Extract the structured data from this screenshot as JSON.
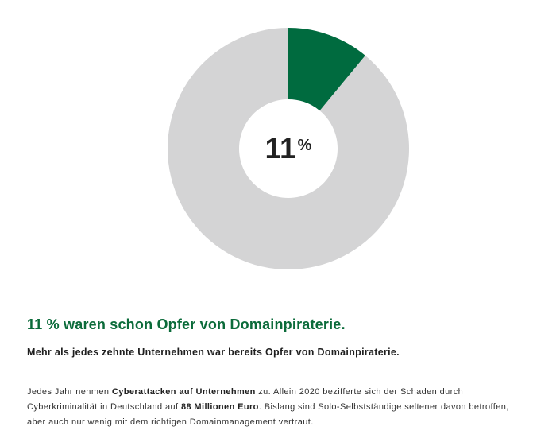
{
  "chart_data": {
    "type": "pie",
    "variant": "donut",
    "center_label": "11",
    "center_unit": "%",
    "slices": [
      {
        "value": 11,
        "color": "#006b3f"
      },
      {
        "value": 89,
        "color": "#d4d4d5"
      }
    ]
  },
  "text": {
    "headline": "11 % waren schon Opfer von Domainpiraterie.",
    "subhead": "Mehr als jedes zehnte Unternehmen war bereits Opfer von Domainpiraterie.",
    "body": {
      "p1": "Jedes Jahr nehmen ",
      "b1": "Cyberattacken auf Unternehmen",
      "p2": " zu. Allein 2020 bezifferte sich der Schaden durch Cyberkriminalität in Deutschland auf ",
      "b2": "88 Millionen Euro",
      "p3": ". Bislang sind Solo-Selbstständige seltener davon betroffen, aber auch nur wenig mit dem richtigen Domainmanagement vertraut."
    }
  }
}
